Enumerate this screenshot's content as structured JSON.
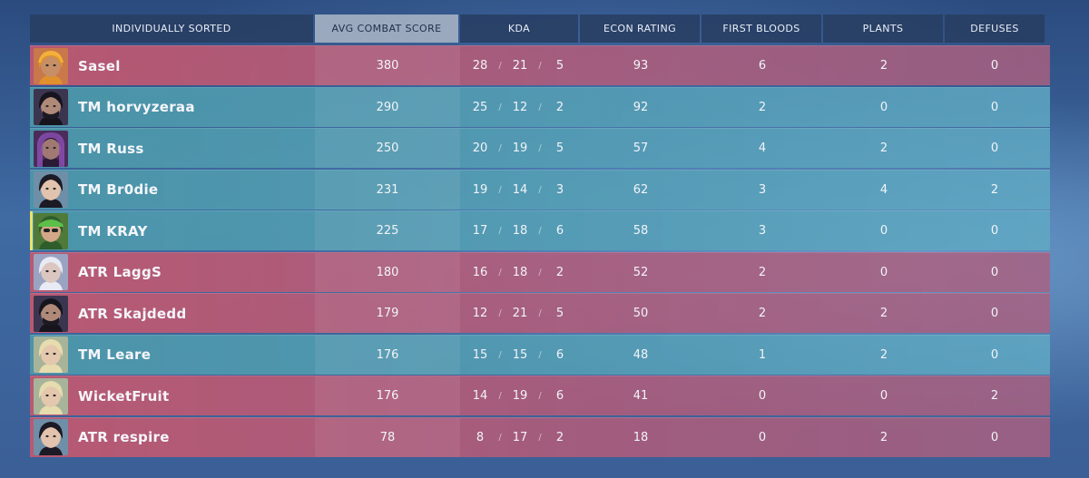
{
  "header": {
    "columns": [
      {
        "key": "name",
        "label": "INDIVIDUALLY SORTED",
        "active": false
      },
      {
        "key": "acs",
        "label": "AVG COMBAT SCORE",
        "active": true
      },
      {
        "key": "kda",
        "label": "KDA",
        "active": false
      },
      {
        "key": "econ",
        "label": "ECON RATING",
        "active": false
      },
      {
        "key": "fb",
        "label": "FIRST BLOODS",
        "active": false
      },
      {
        "key": "plants",
        "label": "PLANTS",
        "active": false
      },
      {
        "key": "defuses",
        "label": "DEFUSES",
        "active": false
      }
    ]
  },
  "kda_separator": "/",
  "players": [
    {
      "name": "Sasel",
      "team": "red",
      "self": false,
      "agent_icon": "agent-orange-helmet-icon",
      "acs": "380",
      "k": "28",
      "d": "21",
      "a": "5",
      "econ": "93",
      "fb": "6",
      "plants": "2",
      "defuses": "0"
    },
    {
      "name": "TM horvyzeraa",
      "team": "teal",
      "self": false,
      "agent_icon": "agent-masked-icon",
      "acs": "290",
      "k": "25",
      "d": "12",
      "a": "2",
      "econ": "92",
      "fb": "2",
      "plants": "0",
      "defuses": "0"
    },
    {
      "name": "TM Russ",
      "team": "teal",
      "self": false,
      "agent_icon": "agent-purple-hood-icon",
      "acs": "250",
      "k": "20",
      "d": "19",
      "a": "5",
      "econ": "57",
      "fb": "4",
      "plants": "2",
      "defuses": "0"
    },
    {
      "name": "TM Br0die",
      "team": "teal",
      "self": false,
      "agent_icon": "agent-dark-hair-icon",
      "acs": "231",
      "k": "19",
      "d": "14",
      "a": "3",
      "econ": "62",
      "fb": "3",
      "plants": "4",
      "defuses": "2"
    },
    {
      "name": "TM KRAY",
      "team": "teal",
      "self": true,
      "agent_icon": "agent-green-cap-icon",
      "acs": "225",
      "k": "17",
      "d": "18",
      "a": "6",
      "econ": "58",
      "fb": "3",
      "plants": "0",
      "defuses": "0"
    },
    {
      "name": "ATR LaggS",
      "team": "red",
      "self": false,
      "agent_icon": "agent-white-hair-icon",
      "acs": "180",
      "k": "16",
      "d": "18",
      "a": "2",
      "econ": "52",
      "fb": "2",
      "plants": "0",
      "defuses": "0"
    },
    {
      "name": "ATR Skajdedd",
      "team": "red",
      "self": false,
      "agent_icon": "agent-masked-icon",
      "acs": "179",
      "k": "12",
      "d": "21",
      "a": "5",
      "econ": "50",
      "fb": "2",
      "plants": "2",
      "defuses": "0"
    },
    {
      "name": "TM Leare",
      "team": "teal",
      "self": false,
      "agent_icon": "agent-blonde-icon",
      "acs": "176",
      "k": "15",
      "d": "15",
      "a": "6",
      "econ": "48",
      "fb": "1",
      "plants": "2",
      "defuses": "0"
    },
    {
      "name": "WicketFruit",
      "team": "red",
      "self": false,
      "agent_icon": "agent-blonde-icon",
      "acs": "176",
      "k": "14",
      "d": "19",
      "a": "6",
      "econ": "41",
      "fb": "0",
      "plants": "0",
      "defuses": "2"
    },
    {
      "name": "ATR respire",
      "team": "red",
      "self": false,
      "agent_icon": "agent-dark-hair-icon",
      "acs": "78",
      "k": "8",
      "d": "17",
      "a": "2",
      "econ": "18",
      "fb": "0",
      "plants": "2",
      "defuses": "0"
    }
  ],
  "colors": {
    "red_team": "#c25870",
    "teal_team": "#4c98aa",
    "self_marker": "#e9e46a",
    "header_bg": "#283e62",
    "header_active": "#9aa9be"
  },
  "avatar_palettes": {
    "agent-orange-helmet-icon": {
      "bg": "#c8784a",
      "hair": "#e0902c",
      "skin": "#c68f66",
      "accent": "#f2b13a"
    },
    "agent-masked-icon": {
      "bg": "#3c3550",
      "hair": "#16141d",
      "skin": "#b08a78",
      "accent": "#1b1a22"
    },
    "agent-purple-hood-icon": {
      "bg": "#4a2c5a",
      "hair": "#2a1a36",
      "skin": "#a07a72",
      "accent": "#8a4fb0"
    },
    "agent-dark-hair-icon": {
      "bg": "#6f8fa8",
      "hair": "#1c1a24",
      "skin": "#e2c3ad",
      "accent": "#2b2833"
    },
    "agent-green-cap-icon": {
      "bg": "#4f7a3a",
      "hair": "#2f5e2c",
      "skin": "#d3a888",
      "accent": "#5bbf4a"
    },
    "agent-white-hair-icon": {
      "bg": "#9aa4c2",
      "hair": "#e8eaf4",
      "skin": "#dcc6c0",
      "accent": "#b6a6e0"
    },
    "agent-blonde-icon": {
      "bg": "#a8b49a",
      "hair": "#e7dcae",
      "skin": "#e4c8ad",
      "accent": "#c9c08a"
    }
  }
}
